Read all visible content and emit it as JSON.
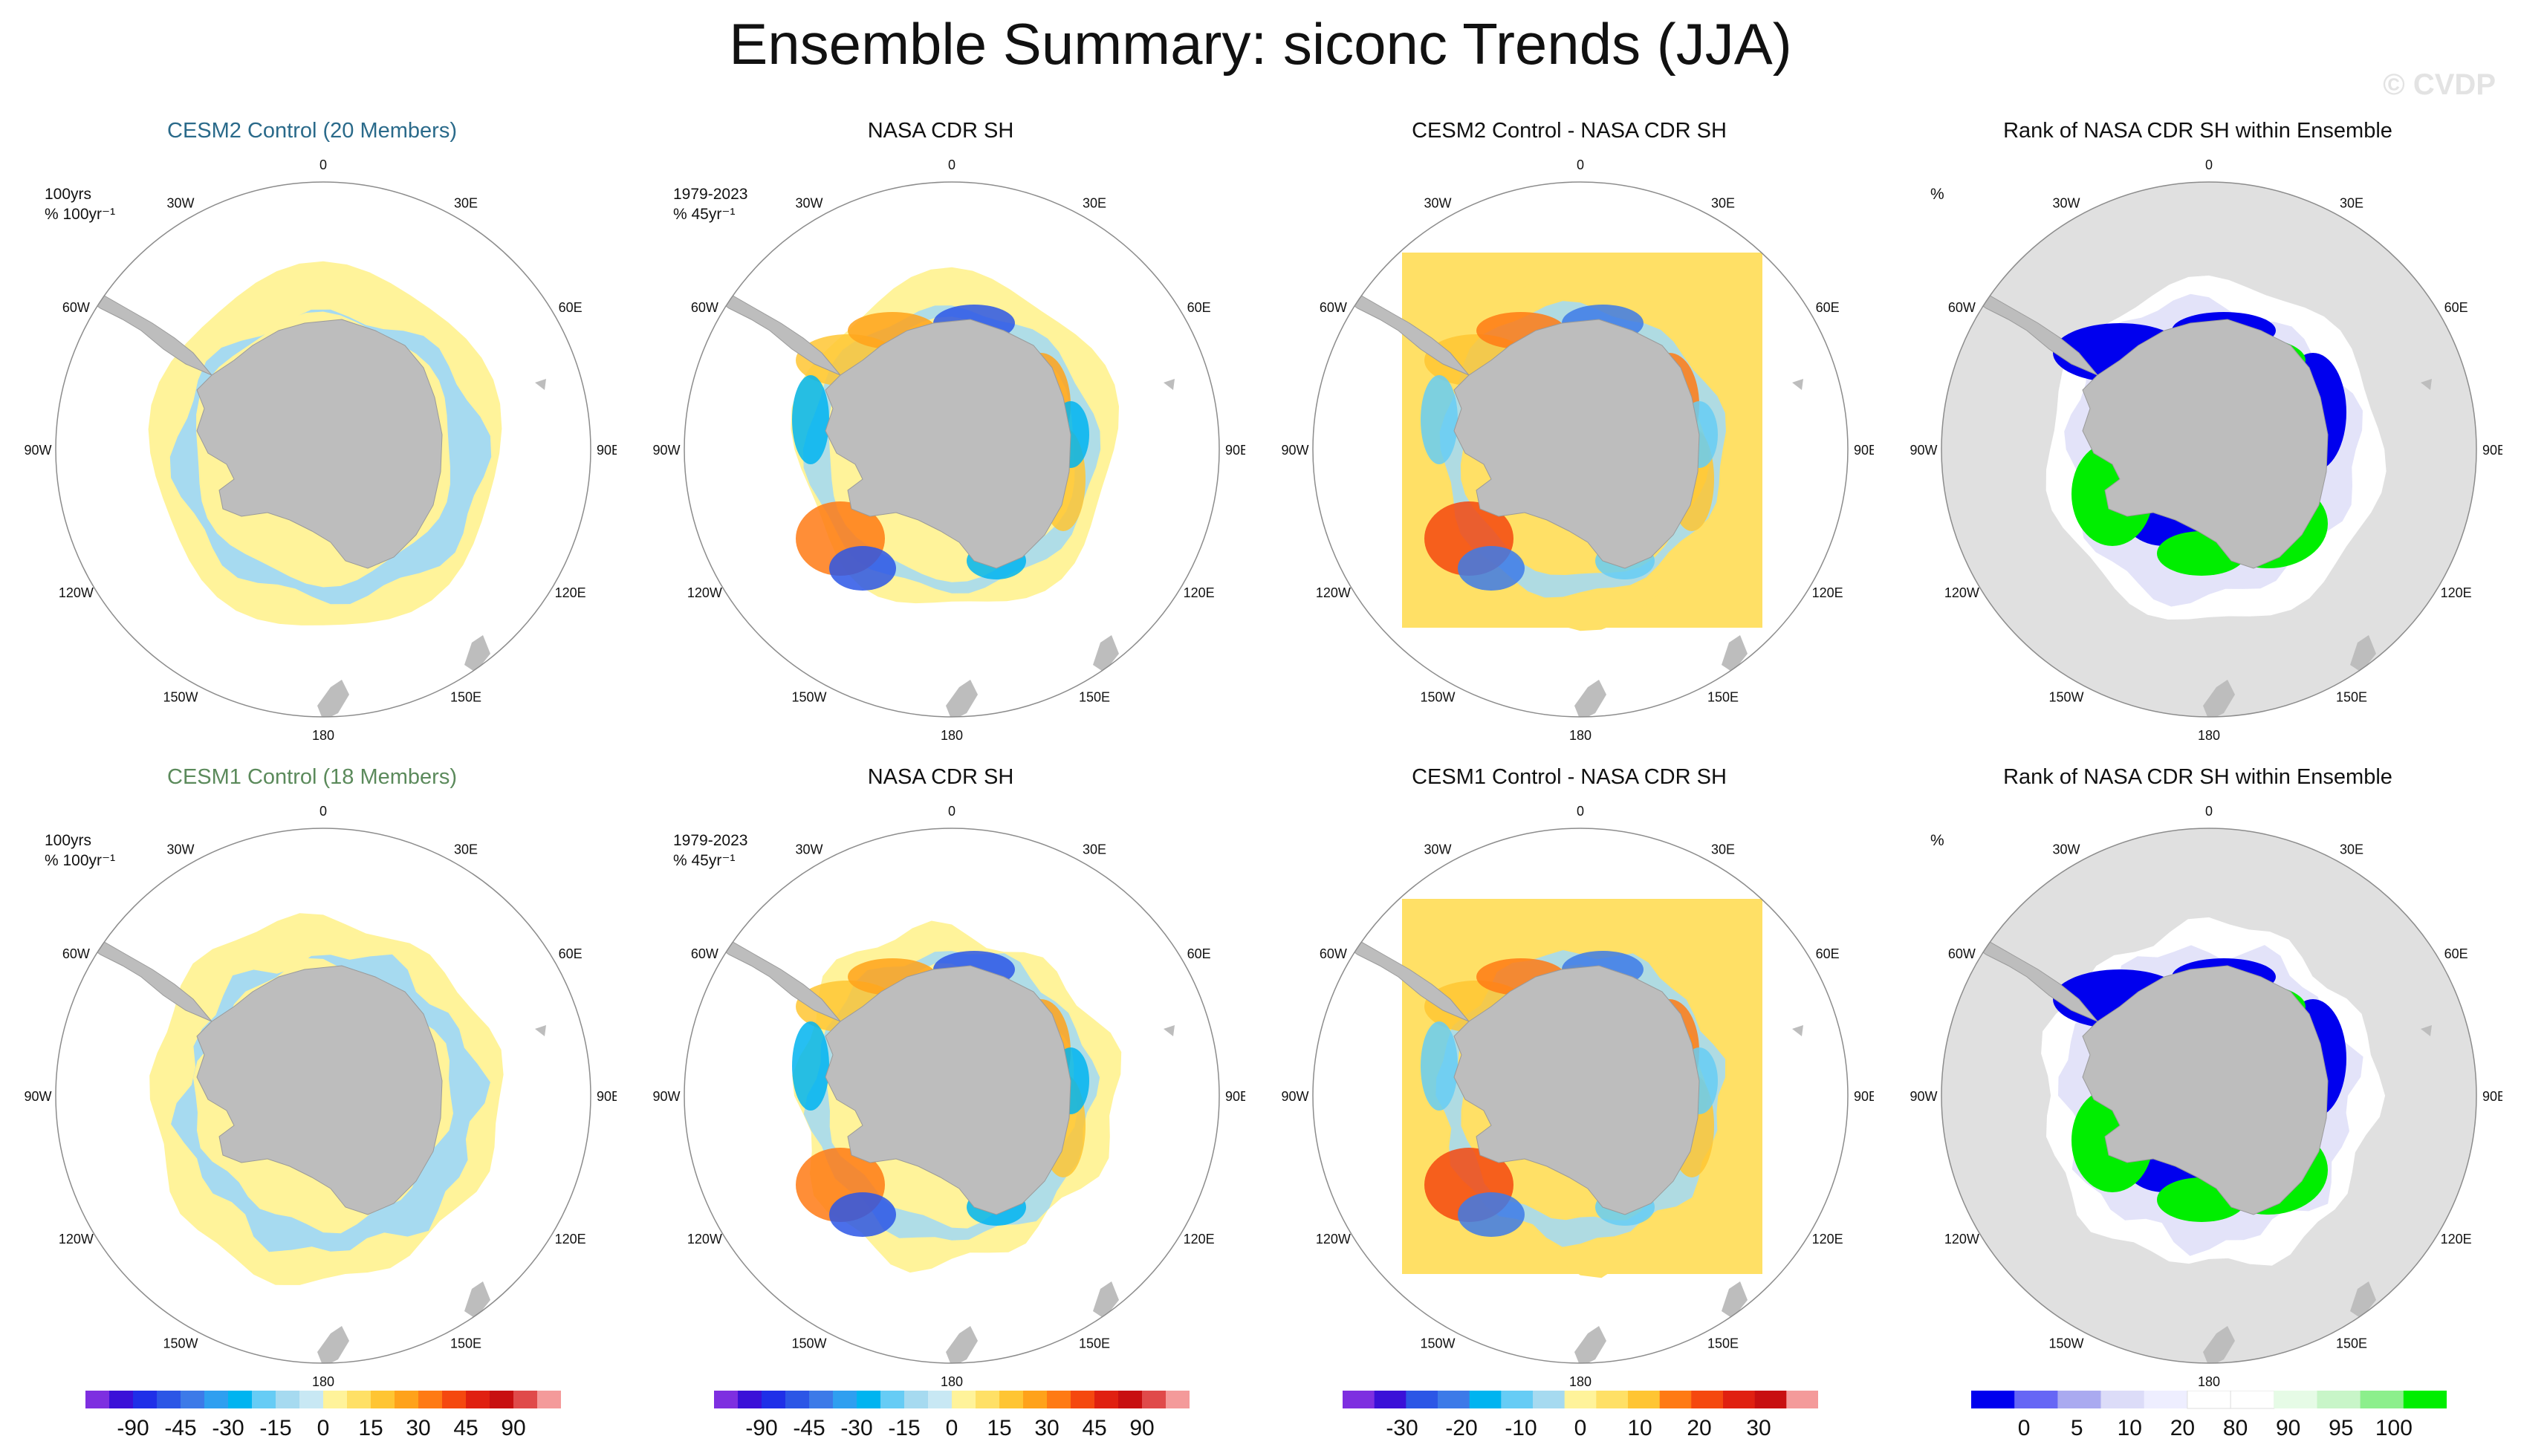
{
  "title": "Ensemble Summary: siconc Trends (JJA)",
  "watermark": "© CVDP",
  "lon_labels": [
    "0",
    "30E",
    "60E",
    "90E",
    "120E",
    "150E",
    "180",
    "150W",
    "120W",
    "90W",
    "60W",
    "30W"
  ],
  "colors": {
    "land": "#bdbdbd",
    "trend_scale": [
      "#7e2fe0",
      "#3b10d8",
      "#1f2fe8",
      "#2c56e6",
      "#3d7ae8",
      "#2f9ff0",
      "#00b4f0",
      "#66ccf5",
      "#a6daf0",
      "#c8e8f4",
      "#fff39a",
      "#ffe066",
      "#ffc533",
      "#ffa21a",
      "#ff7a14",
      "#f5480f",
      "#e02010",
      "#c80f10",
      "#e04a4a",
      "#f49a9a"
    ],
    "diff_scale": [
      "#7e2fe0",
      "#3b10d8",
      "#2c56e6",
      "#3d7ae8",
      "#00b4f0",
      "#66ccf5",
      "#a6daf0",
      "#fff39a",
      "#ffe066",
      "#ffc533",
      "#ff7a14",
      "#f5480f",
      "#e02010",
      "#c80f10",
      "#f49a9a"
    ],
    "rank_scale": [
      "#0000ee",
      "#6666f5",
      "#aaaaf0",
      "#dcdcf8",
      "#eeeeff",
      "#ffffff",
      "#ffffff",
      "#e6fbe6",
      "#c8f5c8",
      "#8cef8c",
      "#00ee00"
    ]
  },
  "panels": [
    {
      "title": "CESM2 Control (20 Members)",
      "style": "cesm2",
      "info": [
        "100yrs",
        "% 100yr⁻¹"
      ],
      "kind": "model"
    },
    {
      "title": "NASA CDR SH",
      "style": "",
      "info": [
        "1979-2023",
        "% 45yr⁻¹"
      ],
      "kind": "obs"
    },
    {
      "title": "CESM2 Control - NASA CDR SH",
      "style": "",
      "info": [
        "",
        ""
      ],
      "kind": "diff"
    },
    {
      "title": "Rank of NASA CDR SH within Ensemble",
      "style": "",
      "info": [
        "%",
        ""
      ],
      "kind": "rank"
    },
    {
      "title": "CESM1 Control (18 Members)",
      "style": "cesm1",
      "info": [
        "100yrs",
        "% 100yr⁻¹"
      ],
      "kind": "model"
    },
    {
      "title": "NASA CDR SH",
      "style": "",
      "info": [
        "1979-2023",
        "% 45yr⁻¹"
      ],
      "kind": "obs"
    },
    {
      "title": "CESM1 Control - NASA CDR SH",
      "style": "",
      "info": [
        "",
        ""
      ],
      "kind": "diff"
    },
    {
      "title": "Rank of NASA CDR SH within Ensemble",
      "style": "",
      "info": [
        "%",
        ""
      ],
      "kind": "rank"
    }
  ],
  "colorbars": [
    {
      "name": "trend-colorbar-1",
      "scale": "trend_scale",
      "labels": [
        "-90",
        "-45",
        "-30",
        "-15",
        "0",
        "15",
        "30",
        "45",
        "90"
      ]
    },
    {
      "name": "trend-colorbar-2",
      "scale": "trend_scale",
      "labels": [
        "-90",
        "-45",
        "-30",
        "-15",
        "0",
        "15",
        "30",
        "45",
        "90"
      ]
    },
    {
      "name": "diff-colorbar",
      "scale": "diff_scale",
      "labels": [
        "-30",
        "-20",
        "-10",
        "0",
        "10",
        "20",
        "30"
      ]
    },
    {
      "name": "rank-colorbar",
      "scale": "rank_scale",
      "labels": [
        "0",
        "5",
        "10",
        "20",
        "80",
        "90",
        "95",
        "100"
      ]
    }
  ]
}
